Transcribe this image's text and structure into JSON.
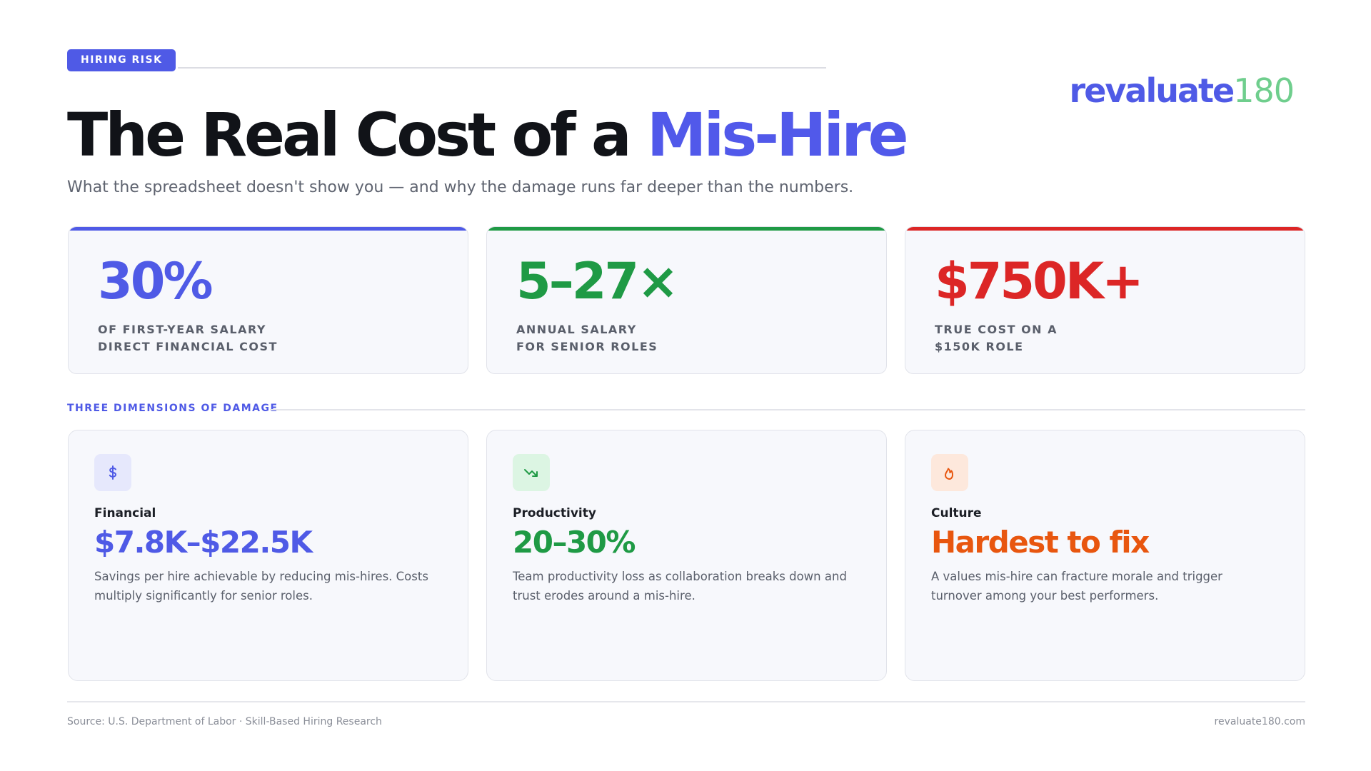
{
  "header": {
    "tag": "HIRING RISK",
    "title": "The Real Cost of a",
    "title_highlight": "Mis-Hire",
    "subtitle": "What the spreadsheet doesn't show you — and why the damage runs far deeper than the numbers.",
    "logo": "revaluate",
    "logo_suffix": "180"
  },
  "stats": [
    {
      "value": "30%",
      "label_lines": [
        "OF FIRST-YEAR SALARY",
        "DIRECT FINANCIAL COST"
      ]
    },
    {
      "value": "5–27×",
      "label_lines": [
        "ANNUAL SALARY",
        "FOR SENIOR ROLES"
      ]
    },
    {
      "value": "$750K+",
      "label_lines": [
        "TRUE COST ON A",
        "$150K ROLE"
      ]
    }
  ],
  "section_label": "THREE DIMENSIONS OF DAMAGE",
  "dimensions": [
    {
      "name": "Financial",
      "value": "$7.8K–$22.5K",
      "description": "Savings per hire achievable by reducing mis-hires. Costs multiply significantly for senior roles."
    },
    {
      "name": "Productivity",
      "value": "20–30%",
      "description": "Team productivity loss as collaboration breaks down and trust erodes around a mis-hire."
    },
    {
      "name": "Culture",
      "value": "Hardest to fix",
      "description": "A values mis-hire can fracture morale and trigger turnover among your best performers."
    }
  ],
  "footer": {
    "source": "Source: U.S. Department of Labor · Skill-Based Hiring Research",
    "site": "revaluate180.com"
  }
}
